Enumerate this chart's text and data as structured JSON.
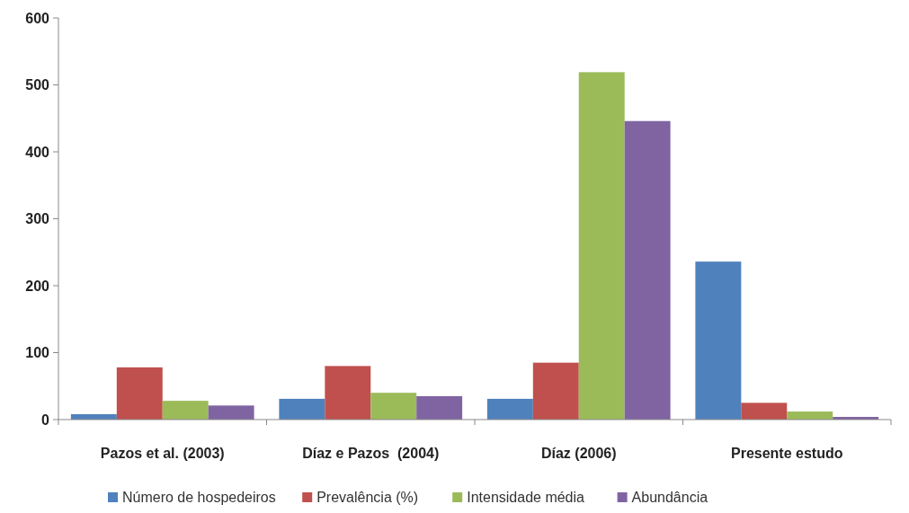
{
  "chart_data": {
    "type": "bar",
    "categories": [
      "Pazos et al. (2003)",
      "Díaz e Pazos  (2004)",
      "Díaz (2006)",
      "Presente estudo"
    ],
    "series": [
      {
        "name": "Número de hospedeiros",
        "color": "#4f81bd",
        "values": [
          8,
          31,
          31,
          236
        ]
      },
      {
        "name": "Prevalência (%)",
        "color": "#c0504d",
        "values": [
          78,
          80,
          85,
          25
        ]
      },
      {
        "name": "Intensidade média",
        "color": "#9bbb59",
        "values": [
          28,
          40,
          519,
          12
        ]
      },
      {
        "name": "Abundância",
        "color": "#8064a2",
        "values": [
          21,
          35,
          446,
          4
        ]
      }
    ],
    "ylim": [
      0,
      600
    ],
    "yticks": [
      0,
      100,
      200,
      300,
      400,
      500,
      600
    ],
    "grid": false,
    "legend": "bottom"
  }
}
